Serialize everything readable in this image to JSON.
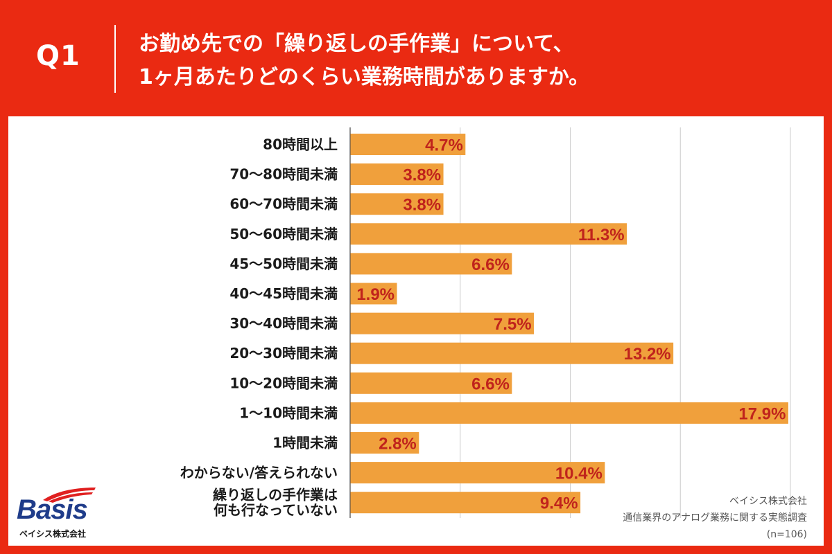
{
  "header": {
    "q_label": "Q1",
    "title_line1": "お勤め先での「繰り返しの手作業」について、",
    "title_line2": "1ヶ月あたりどのくらい業務時間がありますか。"
  },
  "chart_data": {
    "type": "bar",
    "orientation": "horizontal",
    "title": "お勤め先での「繰り返しの手作業」について、1ヶ月あたりどのくらい業務時間がありますか。",
    "categories": [
      "80時間以上",
      "70〜80時間未満",
      "60〜70時間未満",
      "50〜60時間未満",
      "45〜50時間未満",
      "40〜45時間未満",
      "30〜40時間未満",
      "20〜30時間未満",
      "10〜20時間未満",
      "1〜10時間未満",
      "1時間未満",
      "わからない/答えられない",
      "繰り返しの手作業は\n何も行なっていない"
    ],
    "values": [
      4.7,
      3.8,
      3.8,
      11.3,
      6.6,
      1.9,
      7.5,
      13.2,
      6.6,
      17.9,
      2.8,
      10.4,
      9.4
    ],
    "value_labels": [
      "4.7%",
      "3.8%",
      "3.8%",
      "11.3%",
      "6.6%",
      "1.9%",
      "7.5%",
      "13.2%",
      "6.6%",
      "17.9%",
      "2.8%",
      "10.4%",
      "9.4%"
    ],
    "unit": "%",
    "xlim": [
      0,
      18
    ],
    "grid": true,
    "bar_color": "#f0a03c",
    "label_color": "#c0231c"
  },
  "source": {
    "company": "ベイシス株式会社",
    "survey": "通信業界のアナログ業務に関する実態調査",
    "sample": "(n=106)"
  },
  "logo": {
    "word": "Basis",
    "sub": "ベイシス株式会社"
  },
  "colors": {
    "accent": "#ea2a12",
    "logo_blue": "#1f3c8a"
  }
}
